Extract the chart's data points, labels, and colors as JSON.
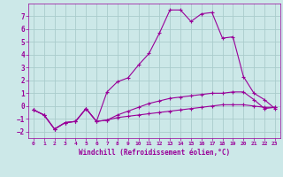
{
  "xlabel": "Windchill (Refroidissement éolien,°C)",
  "bg_color": "#cce8e8",
  "grid_color": "#aacccc",
  "line_color": "#990099",
  "xlim": [
    -0.5,
    23.5
  ],
  "ylim": [
    -2.5,
    8.0
  ],
  "xticks": [
    0,
    1,
    2,
    3,
    4,
    5,
    6,
    7,
    8,
    9,
    10,
    11,
    12,
    13,
    14,
    15,
    16,
    17,
    18,
    19,
    20,
    21,
    22,
    23
  ],
  "yticks": [
    -2,
    -1,
    0,
    1,
    2,
    3,
    4,
    5,
    6,
    7
  ],
  "series": [
    {
      "x": [
        0,
        1,
        2,
        3,
        4,
        5,
        6,
        7,
        8,
        9,
        10,
        11,
        12,
        13,
        14,
        15,
        16,
        17,
        18,
        19,
        20,
        21,
        22,
        23
      ],
      "y": [
        -0.3,
        -0.7,
        -1.8,
        -1.3,
        -1.2,
        -0.2,
        -1.2,
        -1.1,
        -0.9,
        -0.8,
        -0.7,
        -0.6,
        -0.5,
        -0.4,
        -0.3,
        -0.2,
        -0.1,
        0.0,
        0.1,
        0.1,
        0.1,
        0.0,
        -0.1,
        -0.1
      ]
    },
    {
      "x": [
        0,
        1,
        2,
        3,
        4,
        5,
        6,
        7,
        8,
        9,
        10,
        11,
        12,
        13,
        14,
        15,
        16,
        17,
        18,
        19,
        20,
        21,
        22,
        23
      ],
      "y": [
        -0.3,
        -0.7,
        -1.8,
        -1.3,
        -1.2,
        -0.2,
        -1.2,
        -1.1,
        -0.7,
        -0.4,
        -0.1,
        0.2,
        0.4,
        0.6,
        0.7,
        0.8,
        0.9,
        1.0,
        1.0,
        1.1,
        1.1,
        0.5,
        -0.2,
        -0.1
      ]
    },
    {
      "x": [
        0,
        1,
        2,
        3,
        4,
        5,
        6,
        7,
        8,
        9,
        10,
        11,
        12,
        13,
        14,
        15,
        16,
        17,
        18,
        19,
        20,
        21,
        22,
        23
      ],
      "y": [
        -0.3,
        -0.7,
        -1.8,
        -1.3,
        -1.2,
        -0.2,
        -1.2,
        1.1,
        1.9,
        2.2,
        3.2,
        4.1,
        5.7,
        7.5,
        7.5,
        6.6,
        7.2,
        7.3,
        5.3,
        5.4,
        2.3,
        1.0,
        0.5,
        -0.2
      ]
    }
  ]
}
